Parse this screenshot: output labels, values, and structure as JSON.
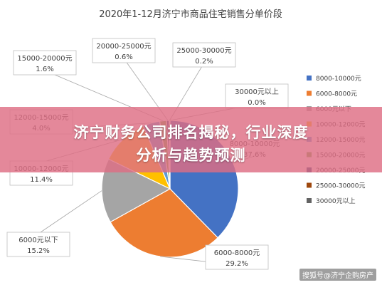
{
  "chart_data": {
    "type": "pie",
    "title": "2020年1-12月济宁市商品住宅销售分单价段",
    "slices": [
      {
        "label": "8000-10000元",
        "value": 37.6,
        "value_label": "37.6%",
        "color": "#4472C4"
      },
      {
        "label": "6000-8000元",
        "value": 29.2,
        "value_label": "29.2%",
        "color": "#ED7D31"
      },
      {
        "label": "6000元以下",
        "value": 15.2,
        "value_label": "15.2%",
        "color": "#A5A5A5"
      },
      {
        "label": "10000-12000元",
        "value": 11.4,
        "value_label": "11.4%",
        "color": "#FFC000"
      },
      {
        "label": "12000-15000元",
        "value": 4.0,
        "value_label": "4.0%",
        "color": "#5B9BD5"
      },
      {
        "label": "15000-20000元",
        "value": 1.6,
        "value_label": "1.6%",
        "color": "#70AD47"
      },
      {
        "label": "20000-25000元",
        "value": 0.6,
        "value_label": "0.6%",
        "color": "#264478"
      },
      {
        "label": "25000-30000元",
        "value": 0.2,
        "value_label": "0.2%",
        "color": "#9E480E"
      },
      {
        "label": "30000元以上",
        "value": 0.0,
        "value_label": "0.0%",
        "color": "#636363"
      }
    ],
    "legend_position": "right"
  },
  "overlay": {
    "line1": "济宁财务公司排名揭秘，行业深度",
    "line2": "分析与趋势预测"
  },
  "watermark": "搜狐号@济宁企购房产"
}
